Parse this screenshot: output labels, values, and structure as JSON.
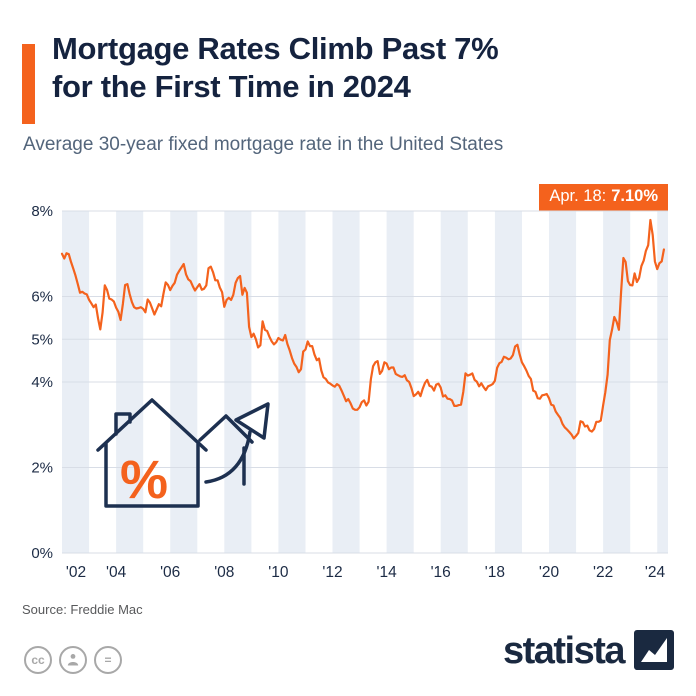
{
  "header": {
    "title_line1": "Mortgage Rates Climb Past 7%",
    "title_line2": "for the First Time in 2024",
    "subtitle": "Average 30-year fixed mortgage rate in the United States"
  },
  "annotation": {
    "date_label": "Apr. 18:",
    "value_label": "7.10%"
  },
  "source": "Source: Freddie Mac",
  "footer": {
    "brand": "statista"
  },
  "icons": {
    "decorative": "house-percent-arrow-icon",
    "license": [
      "cc-icon",
      "attribution-icon",
      "equals-icon"
    ],
    "brand_mark": "statista-logo-square"
  },
  "colors": {
    "accent_orange": "#f4621d",
    "title_navy": "#15233f",
    "subtitle_slate": "#53657b",
    "stripe": "#e9eef5",
    "gridline": "#d8dde6",
    "axis_text": "#1c2b45",
    "source_text": "#58595b",
    "license_gray": "#a8a8a8",
    "brand_navy": "#1a2940"
  },
  "chart_data": {
    "type": "line",
    "title": "Mortgage Rates Climb Past 7% for the First Time in 2024",
    "subtitle": "Average 30-year fixed mortgage rate in the United States",
    "source": "Freddie Mac",
    "xlabel": "",
    "ylabel": "",
    "ylim": [
      0,
      8
    ],
    "yticks": [
      "0%",
      "2%",
      "4%",
      "5%",
      "6%",
      "8%"
    ],
    "xticks": [
      "'02",
      "'04",
      "'06",
      "'08",
      "'10",
      "'12",
      "'14",
      "'16",
      "'18",
      "'20",
      "'22",
      "'24"
    ],
    "grid": "vertical-year-bands",
    "legend": "none",
    "annotation": {
      "label": "Apr. 18: 7.10%",
      "x": "2024-04-18",
      "y": 7.1
    },
    "series": [
      {
        "name": "30-year fixed mortgage rate (%)",
        "start": "2002-01",
        "interval": "monthly",
        "values": [
          7.0,
          6.89,
          7.01,
          6.99,
          6.81,
          6.65,
          6.49,
          6.29,
          6.09,
          6.11,
          6.07,
          6.05,
          5.92,
          5.84,
          5.75,
          5.81,
          5.48,
          5.23,
          5.63,
          6.26,
          6.15,
          5.95,
          5.93,
          5.88,
          5.74,
          5.64,
          5.45,
          5.83,
          6.27,
          6.29,
          6.06,
          5.87,
          5.75,
          5.72,
          5.73,
          5.75,
          5.71,
          5.63,
          5.93,
          5.86,
          5.72,
          5.58,
          5.7,
          5.82,
          5.77,
          6.07,
          6.33,
          6.27,
          6.15,
          6.25,
          6.32,
          6.51,
          6.6,
          6.68,
          6.76,
          6.52,
          6.4,
          6.36,
          6.24,
          6.14,
          6.22,
          6.29,
          6.16,
          6.18,
          6.26,
          6.66,
          6.7,
          6.57,
          6.38,
          6.38,
          6.21,
          6.1,
          5.76,
          5.92,
          5.97,
          5.92,
          6.04,
          6.32,
          6.43,
          6.48,
          6.04,
          6.2,
          6.09,
          5.29,
          5.05,
          5.13,
          5.0,
          4.81,
          4.86,
          5.42,
          5.22,
          5.19,
          5.06,
          4.95,
          4.88,
          4.93,
          5.03,
          4.99,
          4.97,
          5.1,
          4.89,
          4.74,
          4.56,
          4.43,
          4.35,
          4.23,
          4.3,
          4.71,
          4.76,
          4.95,
          4.84,
          4.84,
          4.64,
          4.51,
          4.55,
          4.27,
          4.11,
          4.07,
          3.99,
          3.96,
          3.92,
          3.89,
          3.95,
          3.91,
          3.8,
          3.68,
          3.55,
          3.6,
          3.5,
          3.38,
          3.35,
          3.35,
          3.41,
          3.53,
          3.57,
          3.45,
          3.54,
          4.07,
          4.37,
          4.46,
          4.49,
          4.19,
          4.26,
          4.46,
          4.43,
          4.3,
          4.34,
          4.34,
          4.19,
          4.16,
          4.13,
          4.12,
          4.16,
          4.04,
          4.0,
          3.86,
          3.67,
          3.71,
          3.77,
          3.67,
          3.84,
          3.98,
          4.05,
          3.91,
          3.89,
          3.8,
          3.94,
          3.96,
          3.87,
          3.66,
          3.69,
          3.61,
          3.6,
          3.57,
          3.44,
          3.44,
          3.46,
          3.47,
          3.77,
          4.2,
          4.15,
          4.17,
          4.2,
          4.05,
          4.01,
          3.9,
          3.97,
          3.88,
          3.81,
          3.9,
          3.92,
          3.95,
          4.03,
          4.33,
          4.44,
          4.47,
          4.59,
          4.57,
          4.53,
          4.55,
          4.63,
          4.83,
          4.87,
          4.64,
          4.46,
          4.37,
          4.27,
          4.14,
          4.07,
          3.8,
          3.77,
          3.62,
          3.61,
          3.69,
          3.7,
          3.72,
          3.62,
          3.47,
          3.45,
          3.31,
          3.23,
          3.16,
          3.02,
          2.94,
          2.89,
          2.83,
          2.77,
          2.68,
          2.74,
          2.81,
          3.08,
          3.06,
          2.96,
          2.98,
          2.87,
          2.84,
          2.9,
          3.07,
          3.07,
          3.1,
          3.45,
          3.76,
          4.17,
          4.98,
          5.23,
          5.52,
          5.41,
          5.22,
          6.11,
          6.9,
          6.81,
          6.36,
          6.27,
          6.26,
          6.54,
          6.34,
          6.43,
          6.71,
          6.84,
          7.07,
          7.2,
          7.79,
          7.44,
          6.82,
          6.64,
          6.78,
          6.82,
          7.1
        ]
      }
    ]
  }
}
